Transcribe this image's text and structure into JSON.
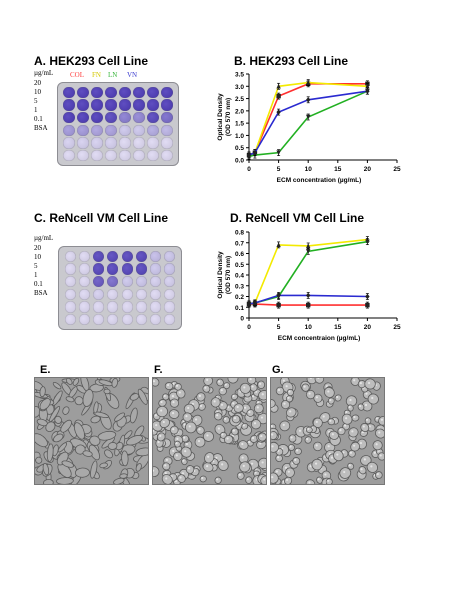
{
  "panels": {
    "a": {
      "title": "A. HEK293 Cell Line"
    },
    "b": {
      "title": "B. HEK293 Cell Line"
    },
    "c": {
      "title": "C. ReNcell VM Cell Line"
    },
    "d": {
      "title": "D. ReNcell VM Cell Line"
    },
    "e": {
      "label": "E."
    },
    "f": {
      "label": "F."
    },
    "g": {
      "label": "G."
    }
  },
  "plate_a": {
    "unit": "µg/mL",
    "rows": [
      "20",
      "10",
      "5",
      "1",
      "0.1",
      "BSA"
    ],
    "legend": [
      {
        "label": "COL",
        "color": "#ff3b3b"
      },
      {
        "label": "FN",
        "color": "#e3d800"
      },
      {
        "label": "LN",
        "color": "#38b63b"
      },
      {
        "label": "VN",
        "color": "#3b3bd0"
      }
    ],
    "intensity": [
      [
        0.95,
        0.95,
        0.95,
        0.95,
        0.95,
        0.95,
        0.95,
        0.95
      ],
      [
        0.95,
        0.95,
        0.95,
        0.95,
        0.95,
        0.95,
        0.95,
        0.95
      ],
      [
        0.95,
        0.95,
        0.95,
        0.9,
        0.6,
        0.55,
        0.9,
        0.7
      ],
      [
        0.45,
        0.45,
        0.4,
        0.4,
        0.2,
        0.2,
        0.35,
        0.3
      ],
      [
        0.15,
        0.15,
        0.15,
        0.15,
        0.1,
        0.1,
        0.1,
        0.1
      ],
      [
        0.1,
        0.1,
        0.1,
        0.1,
        0.1,
        0.1,
        0.1,
        0.1
      ]
    ]
  },
  "plate_c": {
    "unit": "µg/mL",
    "rows": [
      "20",
      "10",
      "5",
      "1",
      "0.1",
      "BSA"
    ],
    "intensity": [
      [
        0.1,
        0.1,
        0.9,
        0.9,
        0.9,
        0.9,
        0.25,
        0.2
      ],
      [
        0.1,
        0.1,
        0.9,
        0.9,
        0.9,
        0.9,
        0.2,
        0.2
      ],
      [
        0.1,
        0.1,
        0.8,
        0.7,
        0.2,
        0.2,
        0.15,
        0.15
      ],
      [
        0.1,
        0.1,
        0.15,
        0.1,
        0.1,
        0.1,
        0.1,
        0.1
      ],
      [
        0.1,
        0.1,
        0.1,
        0.1,
        0.1,
        0.1,
        0.1,
        0.1
      ],
      [
        0.1,
        0.1,
        0.1,
        0.1,
        0.1,
        0.1,
        0.1,
        0.1
      ]
    ]
  },
  "chart_data": [
    {
      "type": "line",
      "panel": "B",
      "xlabel": "ECM concentration (µg/mL)",
      "ylabel": "Optical Density (OD 570 nm)",
      "xlim": [
        0,
        25
      ],
      "ylim": [
        0,
        3.5
      ],
      "xticks": [
        0,
        5,
        10,
        15,
        20,
        25
      ],
      "yticks": [
        0,
        0.5,
        1,
        1.5,
        2,
        2.5,
        3,
        3.5
      ],
      "ytick_labels": [
        "0.0",
        "0.5",
        "1.0",
        "1.5",
        "2.0",
        "2.5",
        "3.0",
        "3.5"
      ],
      "x": [
        0,
        1,
        5,
        10,
        20
      ],
      "series": [
        {
          "color": "#ff3030",
          "marker": "square",
          "values": [
            0.2,
            0.3,
            2.6,
            3.1,
            3.1
          ]
        },
        {
          "color": "#f3ea00",
          "marker": "triangle",
          "values": [
            0.2,
            0.3,
            3.0,
            3.15,
            3.0
          ]
        },
        {
          "color": "#22b022",
          "marker": "triangle-down",
          "values": [
            0.15,
            0.2,
            0.3,
            1.75,
            2.8
          ]
        },
        {
          "color": "#2a2ad0",
          "marker": "diamond",
          "values": [
            0.2,
            0.3,
            1.95,
            2.45,
            2.8
          ]
        }
      ]
    },
    {
      "type": "line",
      "panel": "D",
      "xlabel": "ECM concentraion (µg/mL)",
      "ylabel": "Optical Density (OD 570 nm)",
      "xlim": [
        0,
        25
      ],
      "ylim": [
        0,
        0.8
      ],
      "xticks": [
        0,
        5,
        10,
        15,
        20,
        25
      ],
      "yticks": [
        0,
        0.1,
        0.2,
        0.3,
        0.4,
        0.5,
        0.6,
        0.7,
        0.8
      ],
      "ytick_labels": [
        "0",
        "0.1",
        "0.2",
        "0.3",
        "0.4",
        "0.5",
        "0.6",
        "0.7",
        "0.8"
      ],
      "x": [
        0,
        1,
        5,
        10,
        20
      ],
      "series": [
        {
          "color": "#ff3030",
          "marker": "square",
          "values": [
            0.13,
            0.13,
            0.12,
            0.12,
            0.12
          ]
        },
        {
          "color": "#f3ea00",
          "marker": "triangle",
          "values": [
            0.13,
            0.14,
            0.68,
            0.67,
            0.73
          ]
        },
        {
          "color": "#22b022",
          "marker": "triangle-down",
          "values": [
            0.13,
            0.14,
            0.2,
            0.62,
            0.71
          ]
        },
        {
          "color": "#2a2ad0",
          "marker": "diamond",
          "values": [
            0.13,
            0.14,
            0.21,
            0.21,
            0.2
          ]
        }
      ]
    }
  ]
}
